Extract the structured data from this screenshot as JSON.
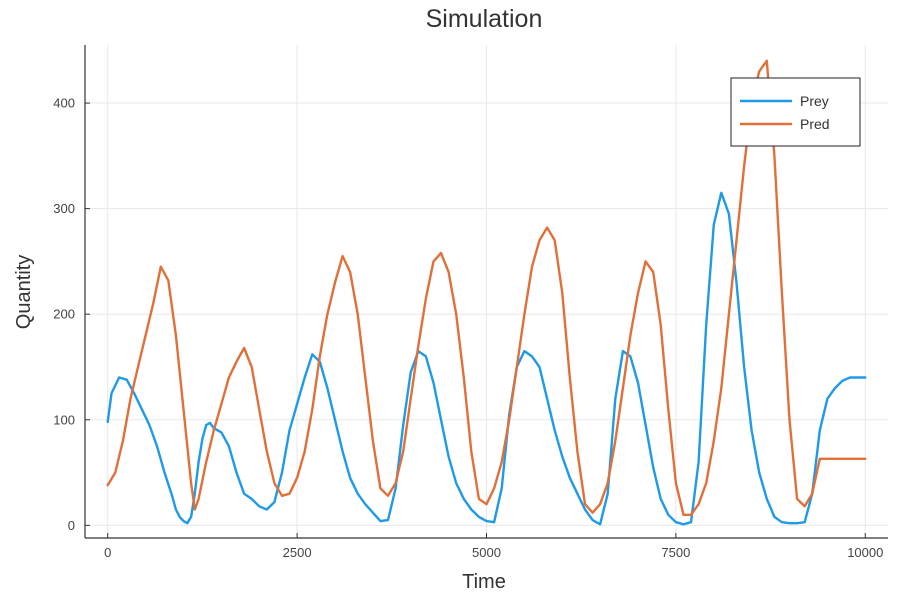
{
  "chart_data": {
    "type": "line",
    "title": "Simulation",
    "xlabel": "Time",
    "ylabel": "Quantity",
    "xlim": [
      -300,
      10300
    ],
    "ylim": [
      -12,
      455
    ],
    "xticks": [
      0,
      2500,
      5000,
      7500,
      10000
    ],
    "yticks": [
      0,
      100,
      200,
      300,
      400
    ],
    "grid": true,
    "legend_position": "top-right",
    "series": [
      {
        "name": "Prey",
        "color": "#1f9ae6",
        "x": [
          0,
          50,
          150,
          250,
          350,
          450,
          550,
          650,
          750,
          850,
          900,
          950,
          1000,
          1050,
          1100,
          1150,
          1200,
          1250,
          1300,
          1350,
          1400,
          1500,
          1600,
          1700,
          1800,
          1900,
          2000,
          2100,
          2200,
          2300,
          2400,
          2500,
          2600,
          2700,
          2800,
          2900,
          3000,
          3100,
          3200,
          3300,
          3400,
          3500,
          3600,
          3700,
          3800,
          3900,
          4000,
          4100,
          4200,
          4300,
          4400,
          4500,
          4600,
          4700,
          4800,
          4900,
          5000,
          5100,
          5200,
          5300,
          5400,
          5500,
          5600,
          5700,
          5800,
          5900,
          6000,
          6100,
          6200,
          6300,
          6400,
          6500,
          6600,
          6700,
          6800,
          6900,
          7000,
          7100,
          7200,
          7300,
          7400,
          7500,
          7600,
          7700,
          7800,
          7900,
          8000,
          8100,
          8200,
          8300,
          8400,
          8500,
          8600,
          8700,
          8800,
          8900,
          9000,
          9100,
          9200,
          9300,
          9400,
          9500,
          9600,
          9700,
          9800,
          9850,
          9900,
          9950,
          10000
        ],
        "y": [
          98,
          125,
          140,
          138,
          125,
          110,
          95,
          75,
          50,
          28,
          15,
          8,
          4,
          2,
          8,
          30,
          60,
          82,
          95,
          97,
          92,
          88,
          75,
          50,
          30,
          25,
          18,
          15,
          22,
          50,
          90,
          115,
          140,
          162,
          155,
          130,
          100,
          70,
          45,
          30,
          20,
          12,
          4,
          5,
          35,
          95,
          145,
          165,
          160,
          135,
          100,
          65,
          40,
          25,
          15,
          8,
          4,
          3,
          35,
          105,
          150,
          165,
          160,
          150,
          120,
          90,
          65,
          45,
          30,
          15,
          5,
          1,
          30,
          120,
          165,
          160,
          135,
          95,
          55,
          25,
          10,
          3,
          1,
          3,
          60,
          190,
          285,
          315,
          295,
          230,
          150,
          90,
          50,
          25,
          8,
          3,
          2,
          2,
          3,
          30,
          90,
          120,
          130,
          137,
          140,
          140,
          140,
          140,
          140
        ]
      },
      {
        "name": "Pred",
        "color": "#e0703a",
        "x": [
          0,
          100,
          200,
          300,
          400,
          500,
          600,
          700,
          800,
          900,
          1000,
          1100,
          1150,
          1200,
          1300,
          1400,
          1500,
          1600,
          1700,
          1800,
          1900,
          2000,
          2100,
          2200,
          2300,
          2400,
          2500,
          2600,
          2700,
          2800,
          2900,
          3000,
          3100,
          3200,
          3300,
          3400,
          3500,
          3600,
          3700,
          3800,
          3900,
          4000,
          4100,
          4200,
          4300,
          4400,
          4500,
          4600,
          4700,
          4800,
          4900,
          5000,
          5100,
          5200,
          5300,
          5400,
          5500,
          5600,
          5700,
          5800,
          5900,
          6000,
          6100,
          6200,
          6300,
          6400,
          6500,
          6600,
          6700,
          6800,
          6900,
          7000,
          7100,
          7200,
          7300,
          7400,
          7500,
          7600,
          7700,
          7800,
          7900,
          8000,
          8100,
          8200,
          8300,
          8400,
          8500,
          8600,
          8700,
          8800,
          8900,
          9000,
          9100,
          9200,
          9300,
          9400,
          9500,
          9600,
          9700,
          9800,
          9900,
          10000
        ],
        "y": [
          38,
          50,
          80,
          120,
          150,
          180,
          210,
          245,
          232,
          180,
          110,
          40,
          15,
          25,
          60,
          90,
          115,
          140,
          155,
          168,
          150,
          110,
          70,
          40,
          28,
          30,
          45,
          70,
          110,
          160,
          200,
          230,
          255,
          240,
          200,
          140,
          80,
          35,
          28,
          40,
          70,
          120,
          170,
          215,
          250,
          258,
          240,
          200,
          140,
          70,
          25,
          20,
          35,
          60,
          100,
          150,
          200,
          245,
          270,
          282,
          270,
          220,
          140,
          70,
          20,
          12,
          20,
          40,
          80,
          130,
          180,
          220,
          250,
          240,
          190,
          110,
          40,
          10,
          10,
          20,
          40,
          80,
          130,
          200,
          270,
          340,
          400,
          430,
          440,
          350,
          220,
          100,
          25,
          18,
          30,
          63,
          63,
          63,
          63,
          63,
          63,
          63
        ]
      }
    ]
  }
}
